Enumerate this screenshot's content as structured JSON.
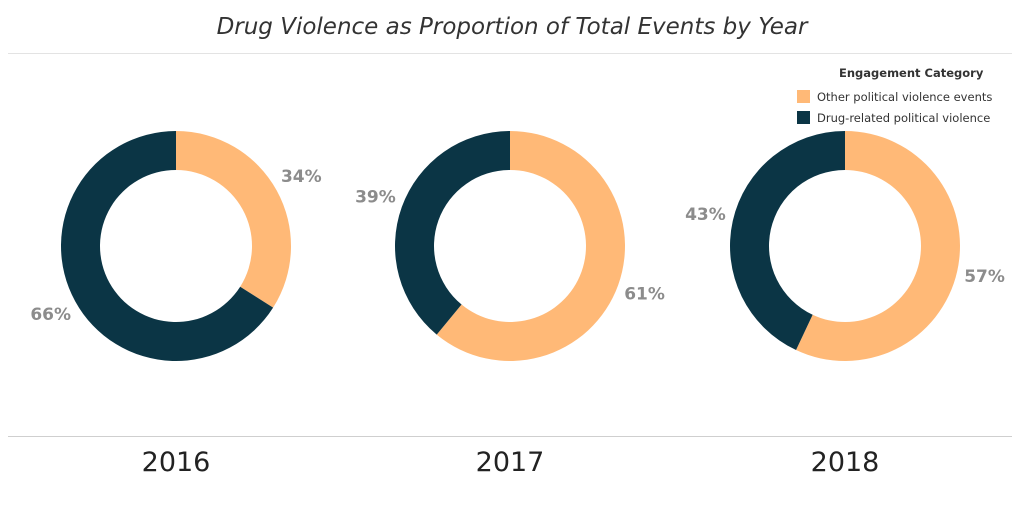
{
  "title": "Drug Violence as Proportion of Total Events by Year",
  "legend": {
    "title": "Engagement Category",
    "items": [
      {
        "label": "Other political violence events",
        "color": "#ffb977"
      },
      {
        "label": "Drug-related political violence",
        "color": "#0b3545"
      }
    ]
  },
  "chart_data": [
    {
      "type": "pie",
      "year": "2016",
      "slices": [
        {
          "category": "Other political violence events",
          "value": 34,
          "label": "34%"
        },
        {
          "category": "Drug-related political violence",
          "value": 66,
          "label": "66%"
        }
      ]
    },
    {
      "type": "pie",
      "year": "2017",
      "slices": [
        {
          "category": "Other political violence events",
          "value": 61,
          "label": "61%"
        },
        {
          "category": "Drug-related political violence",
          "value": 39,
          "label": "39%"
        }
      ]
    },
    {
      "type": "pie",
      "year": "2018",
      "slices": [
        {
          "category": "Other political violence events",
          "value": 57,
          "label": "57%"
        },
        {
          "category": "Drug-related political violence",
          "value": 43,
          "label": "43%"
        }
      ]
    }
  ]
}
